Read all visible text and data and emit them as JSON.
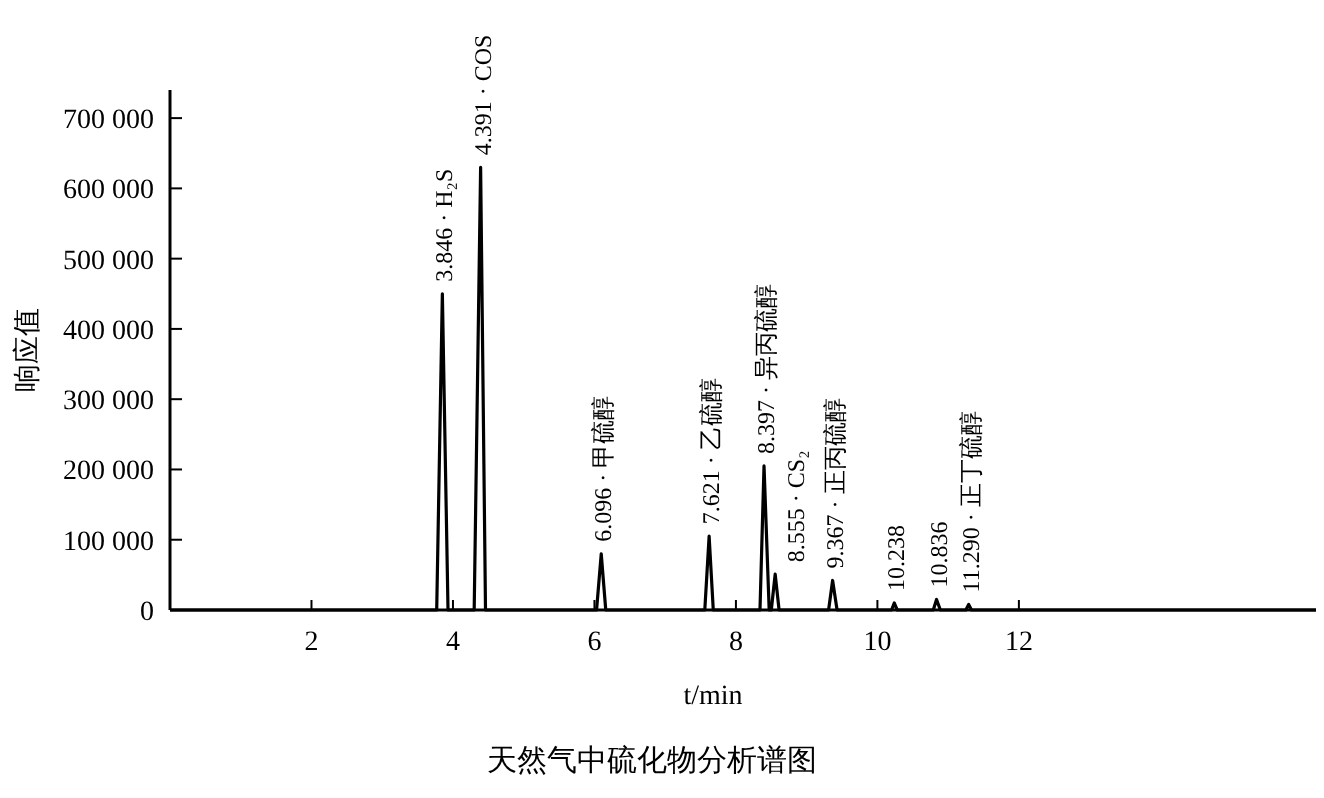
{
  "chart_data": {
    "type": "line",
    "title": "天然气中硫化物分析谱图",
    "xlabel": "t/min",
    "ylabel": "响应值",
    "color": "#000000",
    "x": [
      0,
      3.77,
      3.85,
      3.93,
      4.3,
      4.391,
      4.46,
      6.03,
      6.096,
      6.16,
      7.56,
      7.621,
      7.68,
      8.34,
      8.397,
      8.47,
      8.5,
      8.555,
      8.61,
      9.31,
      9.367,
      9.43,
      10.2,
      10.238,
      10.28,
      10.79,
      10.836,
      10.89,
      11.25,
      11.29,
      11.33,
      16.2
    ],
    "values": [
      0,
      0,
      450000,
      0,
      0,
      630000,
      0,
      0,
      80000,
      0,
      0,
      105000,
      0,
      0,
      205000,
      0,
      0,
      51000,
      0,
      0,
      42000,
      0,
      0,
      10000,
      0,
      0,
      15000,
      0,
      0,
      8000,
      0,
      0
    ],
    "xlim": [
      0,
      16.2
    ],
    "xticks": [
      2,
      4,
      6,
      8,
      10,
      12
    ],
    "ylim": [
      0,
      740000
    ],
    "yticks": [
      0,
      {
        "value": 100000,
        "label": "100 000"
      },
      {
        "value": 200000,
        "label": "200 000"
      },
      {
        "value": 300000,
        "label": "300 000"
      },
      {
        "value": 400000,
        "label": "400 000"
      },
      {
        "value": 500000,
        "label": "500 000"
      },
      {
        "value": 600000,
        "label": "600 000"
      },
      {
        "value": 700000,
        "label": "700 000"
      }
    ],
    "grid": false,
    "annotations": [
      {
        "text": "3.846 · H₂S",
        "x": 3.85,
        "y": 450000
      },
      {
        "text": "4.391 · COS",
        "x": 4.391,
        "y": 630000
      },
      {
        "text": "6.096 · 甲硫醇",
        "x": 6.096,
        "y": 80000
      },
      {
        "text": "7.621 · 乙硫醇",
        "x": 7.621,
        "y": 105000
      },
      {
        "text": "8.397 · 异丙硫醇",
        "x": 8.397,
        "y": 205000
      },
      {
        "text": "8.555 · CS₂",
        "x": 8.555,
        "y": 51000
      },
      {
        "text": "9.367 · 正丙硫醇",
        "x": 9.367,
        "y": 42000
      },
      {
        "text": "10.238",
        "x": 10.238,
        "y": 10000
      },
      {
        "text": "10.836",
        "x": 10.836,
        "y": 15000
      },
      {
        "text": "11.290 · 正丁硫醇",
        "x": 11.29,
        "y": 8000
      }
    ]
  }
}
